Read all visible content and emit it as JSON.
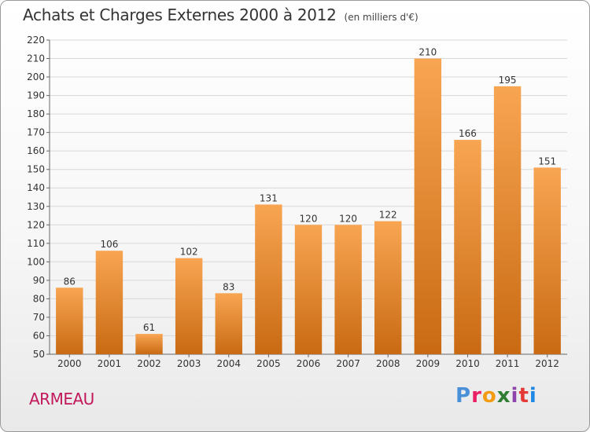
{
  "title": "Achats et Charges Externes 2000 à 2012",
  "subtitle": "(en milliers d'€)",
  "commune": "ARMEAU",
  "logo_text": "Proxiti",
  "colors": {
    "bar_top": "#f8a552",
    "bar_bottom": "#c96a13",
    "grid": "#d8d8d8",
    "commune": "#c2185b"
  },
  "chart_data": {
    "type": "bar",
    "title": "Achats et Charges Externes 2000 à 2012",
    "subtitle": "(en milliers d'€)",
    "xlabel": "",
    "ylabel": "",
    "categories": [
      "2000",
      "2001",
      "2002",
      "2003",
      "2004",
      "2005",
      "2006",
      "2007",
      "2008",
      "2009",
      "2010",
      "2011",
      "2012"
    ],
    "values": [
      86,
      106,
      61,
      102,
      83,
      131,
      120,
      120,
      122,
      210,
      166,
      195,
      151
    ],
    "ylim": [
      50,
      220
    ],
    "yticks": [
      50,
      60,
      70,
      80,
      90,
      100,
      110,
      120,
      130,
      140,
      150,
      160,
      170,
      180,
      190,
      200,
      210,
      220
    ],
    "grid": true,
    "legend": "none"
  }
}
